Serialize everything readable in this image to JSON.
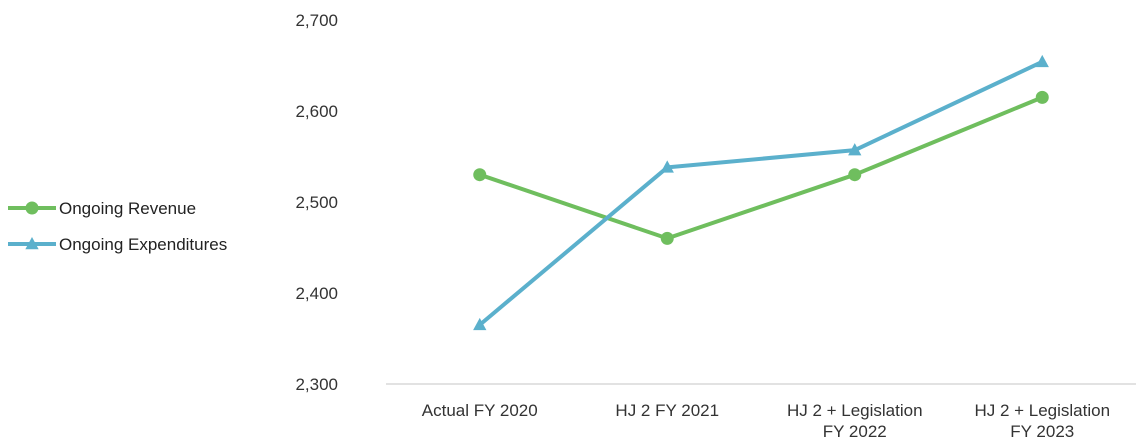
{
  "chart_data": {
    "type": "line",
    "title": "",
    "xlabel": "",
    "ylabel": "",
    "categories": [
      [
        "Actual FY 2020"
      ],
      [
        "HJ 2 FY 2021"
      ],
      [
        "HJ 2 + Legislation",
        "FY 2022"
      ],
      [
        "HJ 2 + Legislation",
        "FY 2023"
      ]
    ],
    "ylim": [
      2300,
      2700
    ],
    "yticks": [
      "2,300",
      "2,400",
      "2,500",
      "2,600",
      "2,700"
    ],
    "ytick_values": [
      2300,
      2400,
      2500,
      2600,
      2700
    ],
    "grid": false,
    "legend_position": "left",
    "series": [
      {
        "name": "Ongoing Revenue",
        "values": [
          2530,
          2460,
          2530,
          2615
        ],
        "color": "#6fbe5e",
        "marker": "circle"
      },
      {
        "name": "Ongoing Expenditures",
        "values": [
          2365,
          2538,
          2557,
          2654
        ],
        "color": "#5bb0cc",
        "marker": "triangle"
      }
    ]
  }
}
